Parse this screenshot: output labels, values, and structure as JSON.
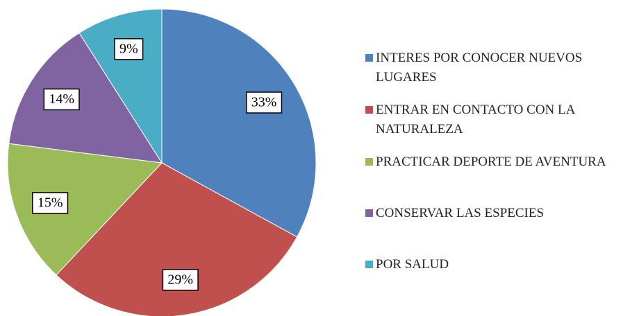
{
  "chart_data": {
    "type": "pie",
    "categories": [
      "INTERES POR CONOCER NUEVOS LUGARES",
      "ENTRAR EN CONTACTO CON LA NATURALEZA",
      "PRACTICAR DEPORTE DE AVENTURA",
      "CONSERVAR LAS ESPECIES",
      "POR SALUD"
    ],
    "values": [
      33,
      29,
      15,
      14,
      9
    ],
    "value_labels": [
      "33%",
      "29%",
      "15%",
      "14%",
      "9%"
    ],
    "colors": [
      "#4f81bd",
      "#c0504d",
      "#9bbb59",
      "#8064a2",
      "#4bacc6"
    ],
    "legend": "right"
  }
}
